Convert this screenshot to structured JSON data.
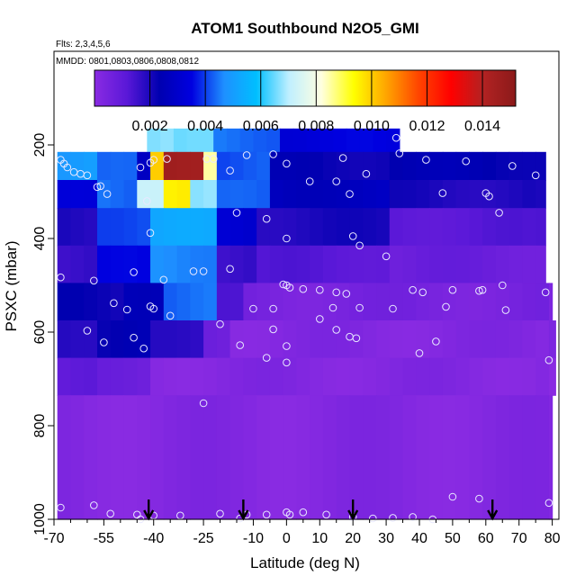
{
  "chart_data": {
    "type": "heatmap",
    "title": "ATOM1 Southbound N2O5_GMI",
    "notes": {
      "flights": "Flts: 2,3,4,5,6",
      "dates": "MMDD: 0801,0803,0806,0808,0812"
    },
    "xlabel": "Latitude (deg N)",
    "ylabel": "PSXC (mbar)",
    "xlim": [
      -70,
      82
    ],
    "ylim": [
      1000,
      0
    ],
    "x_ticks": [
      "-70",
      "-55",
      "-40",
      "-25",
      "-10",
      "0",
      "10",
      "20",
      "30",
      "40",
      "50",
      "60",
      "70",
      "80"
    ],
    "x_tick_values": [
      -70,
      -55,
      -40,
      -25,
      -10,
      0,
      10,
      20,
      30,
      40,
      50,
      60,
      70,
      80
    ],
    "x_minor_ticks": [
      -65,
      -60,
      -50,
      -45,
      -35,
      -30,
      -20,
      -15,
      -5,
      5,
      15,
      25,
      35,
      45,
      55,
      65,
      75
    ],
    "y_ticks": [
      "200",
      "400",
      "600",
      "800",
      "1000"
    ],
    "y_tick_values": [
      200,
      400,
      600,
      800,
      1000
    ],
    "colorbar": {
      "min": 0.0,
      "max": 0.0152,
      "ticks": [
        "0.002",
        "0.004",
        "0.006",
        "0.008",
        "0.010",
        "0.012",
        "0.014"
      ],
      "tick_values": [
        0.002,
        0.004,
        0.006,
        0.008,
        0.01,
        0.012,
        0.014
      ],
      "colors": [
        "#8a2be2",
        "#5a18d8",
        "#0000b0",
        "#0000e0",
        "#1e90ff",
        "#00bfff",
        "#bfefff",
        "#ffffe0",
        "#ffff00",
        "#ffa500",
        "#ff4500",
        "#ff0000",
        "#b22222",
        "#8b1a1a"
      ]
    },
    "grid": false,
    "levels": [
      175,
      215,
      255,
      295,
      335,
      375,
      415,
      455,
      495,
      535,
      575,
      615,
      655,
      695,
      735,
      775,
      815,
      855,
      895,
      935,
      975
    ],
    "lat_step": 4,
    "field": [
      {
        "p": [
          165,
          215
        ],
        "lat": [
          -42,
          34
        ],
        "v": 0.0032,
        "hot": [
          [
            -42,
            -32,
            0.0065
          ],
          [
            -32,
            -22,
            0.0062
          ],
          [
            -22,
            0,
            0.0042
          ]
        ]
      },
      {
        "p": [
          215,
          275
        ],
        "lat": [
          -69,
          78
        ],
        "v": 0.0025,
        "hot": [
          [
            -69,
            -56,
            0.0048
          ],
          [
            -56,
            -45,
            0.004
          ],
          [
            -42,
            -37,
            0.0098
          ],
          [
            -37,
            -24,
            0.0145
          ],
          [
            -24,
            -19,
            0.0085
          ],
          [
            -19,
            -5,
            0.004
          ],
          [
            -5,
            30,
            0.0021
          ],
          [
            30,
            78,
            0.0022
          ]
        ]
      },
      {
        "p": [
          275,
          335
        ],
        "lat": [
          -69,
          78
        ],
        "v": 0.0022,
        "hot": [
          [
            -69,
            -58,
            0.003
          ],
          [
            -58,
            -46,
            0.0042
          ],
          [
            -44,
            -38,
            0.0072
          ],
          [
            -38,
            -28,
            0.0095
          ],
          [
            -28,
            -20,
            0.0065
          ],
          [
            -20,
            -5,
            0.004
          ],
          [
            -5,
            30,
            0.0025
          ],
          [
            30,
            78,
            0.0018
          ]
        ]
      },
      {
        "p": [
          335,
          415
        ],
        "lat": [
          -69,
          78
        ],
        "v": 0.0012,
        "hot": [
          [
            -69,
            -55,
            0.0018
          ],
          [
            -55,
            -40,
            0.004
          ],
          [
            -40,
            -20,
            0.005
          ],
          [
            -20,
            -10,
            0.003
          ],
          [
            -10,
            30,
            0.0018
          ],
          [
            30,
            78,
            0.001
          ]
        ]
      },
      {
        "p": [
          415,
          495
        ],
        "lat": [
          -69,
          78
        ],
        "v": 0.0006,
        "hot": [
          [
            -69,
            -55,
            0.0015
          ],
          [
            -55,
            -40,
            0.0032
          ],
          [
            -40,
            -20,
            0.0045
          ],
          [
            -20,
            -10,
            0.0015
          ],
          [
            -10,
            30,
            0.001
          ]
        ]
      },
      {
        "p": [
          495,
          575
        ],
        "lat": [
          -69,
          80
        ],
        "v": 0.0003,
        "hot": [
          [
            -69,
            -50,
            0.002
          ],
          [
            -50,
            -38,
            0.0025
          ],
          [
            -38,
            -22,
            0.0042
          ],
          [
            -22,
            -12,
            0.001
          ]
        ]
      },
      {
        "p": [
          575,
          655
        ],
        "lat": [
          -69,
          81
        ],
        "v": 5e-05,
        "hot": [
          [
            -69,
            -55,
            0.0018
          ],
          [
            -55,
            -40,
            0.0022
          ],
          [
            -40,
            -25,
            0.0015
          ],
          [
            -25,
            -18,
            0.0006
          ]
        ]
      },
      {
        "p": [
          655,
          735
        ],
        "lat": [
          -69,
          81
        ],
        "v": 3e-05,
        "hot": [
          [
            -69,
            -55,
            0.0008
          ],
          [
            -55,
            -40,
            0.0005
          ]
        ]
      },
      {
        "p": [
          735,
          1000
        ],
        "lat": [
          -69,
          80
        ],
        "v": 2e-05,
        "hot": []
      }
    ],
    "obs_points": [
      [
        -68,
        232
      ],
      [
        -67,
        240
      ],
      [
        -66,
        248
      ],
      [
        -64,
        258
      ],
      [
        -62,
        262
      ],
      [
        -60,
        265
      ],
      [
        -57,
        290
      ],
      [
        -56,
        288
      ],
      [
        -54,
        305
      ],
      [
        -44,
        248
      ],
      [
        -41,
        238
      ],
      [
        -40,
        232
      ],
      [
        -36,
        230
      ],
      [
        -24,
        230
      ],
      [
        -22,
        230
      ],
      [
        -17,
        255
      ],
      [
        -12,
        222
      ],
      [
        -4,
        220
      ],
      [
        0,
        240
      ],
      [
        17,
        228
      ],
      [
        33,
        185
      ],
      [
        34,
        218
      ],
      [
        42,
        232
      ],
      [
        54,
        235
      ],
      [
        68,
        245
      ],
      [
        75,
        265
      ],
      [
        -15,
        345
      ],
      [
        -6,
        358
      ],
      [
        7,
        278
      ],
      [
        15,
        278
      ],
      [
        19,
        305
      ],
      [
        24,
        262
      ],
      [
        47,
        303
      ],
      [
        60,
        303
      ],
      [
        61,
        310
      ],
      [
        64,
        345
      ],
      [
        -42,
        320
      ],
      [
        -41,
        388
      ],
      [
        20,
        395
      ],
      [
        0,
        400
      ],
      [
        22,
        415
      ],
      [
        30,
        438
      ],
      [
        -68,
        483
      ],
      [
        -58,
        490
      ],
      [
        -46,
        472
      ],
      [
        -37,
        488
      ],
      [
        -28,
        470
      ],
      [
        -25,
        470
      ],
      [
        -17,
        465
      ],
      [
        0,
        500
      ],
      [
        -1,
        498
      ],
      [
        1,
        505
      ],
      [
        5,
        508
      ],
      [
        10,
        510
      ],
      [
        15,
        515
      ],
      [
        18,
        518
      ],
      [
        38,
        510
      ],
      [
        41,
        515
      ],
      [
        50,
        510
      ],
      [
        58,
        512
      ],
      [
        59,
        510
      ],
      [
        65,
        500
      ],
      [
        78,
        515
      ],
      [
        -52,
        538
      ],
      [
        -48,
        552
      ],
      [
        -41,
        545
      ],
      [
        -40,
        550
      ],
      [
        -35,
        565
      ],
      [
        -10,
        550
      ],
      [
        -4,
        550
      ],
      [
        14,
        548
      ],
      [
        22,
        548
      ],
      [
        32,
        550
      ],
      [
        48,
        546
      ],
      [
        66,
        553
      ],
      [
        -60,
        597
      ],
      [
        -55,
        622
      ],
      [
        -46,
        612
      ],
      [
        -43,
        635
      ],
      [
        -20,
        583
      ],
      [
        -14,
        628
      ],
      [
        -4,
        594
      ],
      [
        0,
        630
      ],
      [
        10,
        572
      ],
      [
        15,
        595
      ],
      [
        19,
        610
      ],
      [
        21,
        613
      ],
      [
        40,
        645
      ],
      [
        45,
        620
      ],
      [
        79,
        660
      ],
      [
        -6,
        655
      ],
      [
        0,
        665
      ],
      [
        -25,
        752
      ],
      [
        -68,
        975
      ],
      [
        -58,
        970
      ],
      [
        -53,
        988
      ],
      [
        -45,
        990
      ],
      [
        -40,
        992
      ],
      [
        -32,
        992
      ],
      [
        -20,
        988
      ],
      [
        -12,
        990
      ],
      [
        -6,
        990
      ],
      [
        0,
        985
      ],
      [
        1,
        990
      ],
      [
        5,
        985
      ],
      [
        12,
        990
      ],
      [
        20,
        995
      ],
      [
        26,
        998
      ],
      [
        32,
        997
      ],
      [
        38,
        995
      ],
      [
        44,
        1000
      ],
      [
        50,
        952
      ],
      [
        58,
        956
      ],
      [
        79,
        965
      ],
      [
        -44,
        1000
      ],
      [
        -14,
        998
      ]
    ],
    "arrows_lat": [
      -41.5,
      -13,
      20,
      62
    ]
  }
}
